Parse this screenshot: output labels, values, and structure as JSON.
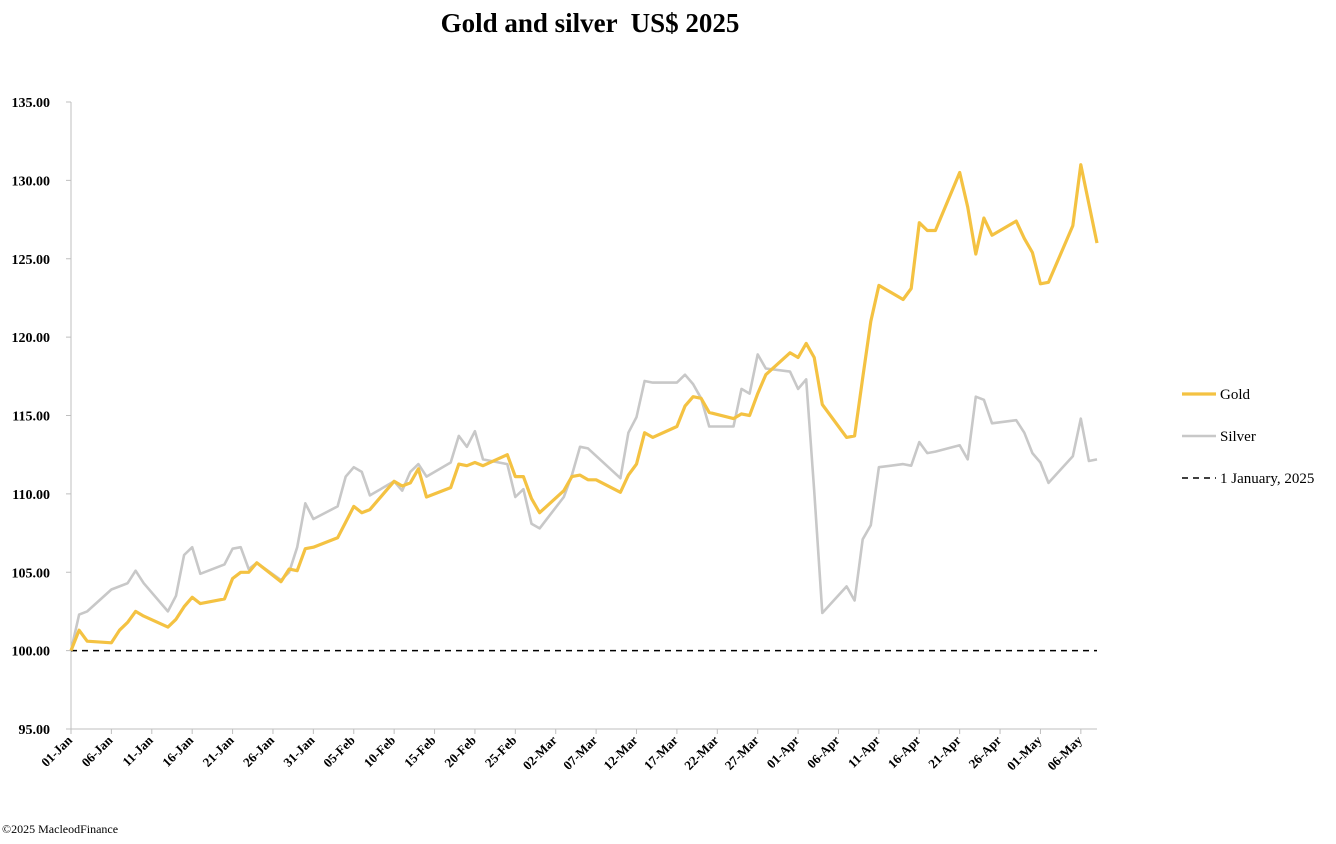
{
  "chart_data": {
    "type": "line",
    "title": "Gold and silver  US$ 2025",
    "xlabel": "",
    "ylabel": "",
    "ylim": [
      95,
      135
    ],
    "yticks": [
      "95.00",
      "100.00",
      "105.00",
      "110.00",
      "115.00",
      "120.00",
      "125.00",
      "130.00",
      "135.00"
    ],
    "xticks": [
      "01-Jan",
      "06-Jan",
      "11-Jan",
      "16-Jan",
      "21-Jan",
      "26-Jan",
      "31-Jan",
      "05-Feb",
      "10-Feb",
      "15-Feb",
      "20-Feb",
      "25-Feb",
      "02-Mar",
      "07-Mar",
      "12-Mar",
      "17-Mar",
      "22-Mar",
      "27-Mar",
      "01-Apr",
      "06-Apr",
      "11-Apr",
      "16-Apr",
      "21-Apr",
      "26-Apr",
      "01-May",
      "06-May"
    ],
    "x_end": "08-May",
    "grid": false,
    "legend_position": "right",
    "series": [
      {
        "name": "Gold",
        "color": "#F4C242",
        "points": [
          [
            "01-Jan",
            100.0
          ],
          [
            "02-Jan",
            101.3
          ],
          [
            "03-Jan",
            100.6
          ],
          [
            "06-Jan",
            100.5
          ],
          [
            "07-Jan",
            101.3
          ],
          [
            "08-Jan",
            101.8
          ],
          [
            "09-Jan",
            102.5
          ],
          [
            "10-Jan",
            102.2
          ],
          [
            "13-Jan",
            101.5
          ],
          [
            "14-Jan",
            102.0
          ],
          [
            "15-Jan",
            102.8
          ],
          [
            "16-Jan",
            103.4
          ],
          [
            "17-Jan",
            103.0
          ],
          [
            "20-Jan",
            103.3
          ],
          [
            "21-Jan",
            104.6
          ],
          [
            "22-Jan",
            105.0
          ],
          [
            "23-Jan",
            105.0
          ],
          [
            "24-Jan",
            105.6
          ],
          [
            "27-Jan",
            104.4
          ],
          [
            "28-Jan",
            105.2
          ],
          [
            "29-Jan",
            105.1
          ],
          [
            "30-Jan",
            106.5
          ],
          [
            "31-Jan",
            106.6
          ],
          [
            "03-Feb",
            107.2
          ],
          [
            "04-Feb",
            108.2
          ],
          [
            "05-Feb",
            109.2
          ],
          [
            "06-Feb",
            108.8
          ],
          [
            "07-Feb",
            109.0
          ],
          [
            "10-Feb",
            110.8
          ],
          [
            "11-Feb",
            110.5
          ],
          [
            "12-Feb",
            110.7
          ],
          [
            "13-Feb",
            111.6
          ],
          [
            "14-Feb",
            109.8
          ],
          [
            "17-Feb",
            110.4
          ],
          [
            "18-Feb",
            111.9
          ],
          [
            "19-Feb",
            111.8
          ],
          [
            "20-Feb",
            112.0
          ],
          [
            "21-Feb",
            111.8
          ],
          [
            "24-Feb",
            112.5
          ],
          [
            "25-Feb",
            111.1
          ],
          [
            "26-Feb",
            111.1
          ],
          [
            "27-Feb",
            109.7
          ],
          [
            "28-Feb",
            108.8
          ],
          [
            "03-Mar",
            110.2
          ],
          [
            "04-Mar",
            111.1
          ],
          [
            "05-Mar",
            111.2
          ],
          [
            "06-Mar",
            110.9
          ],
          [
            "07-Mar",
            110.9
          ],
          [
            "10-Mar",
            110.1
          ],
          [
            "11-Mar",
            111.2
          ],
          [
            "12-Mar",
            111.9
          ],
          [
            "13-Mar",
            113.9
          ],
          [
            "14-Mar",
            113.6
          ],
          [
            "17-Mar",
            114.3
          ],
          [
            "18-Mar",
            115.6
          ],
          [
            "19-Mar",
            116.2
          ],
          [
            "20-Mar",
            116.1
          ],
          [
            "21-Mar",
            115.2
          ],
          [
            "24-Mar",
            114.8
          ],
          [
            "25-Mar",
            115.1
          ],
          [
            "26-Mar",
            115.0
          ],
          [
            "27-Mar",
            116.4
          ],
          [
            "28-Mar",
            117.6
          ],
          [
            "31-Mar",
            119.0
          ],
          [
            "01-Apr",
            118.7
          ],
          [
            "02-Apr",
            119.6
          ],
          [
            "03-Apr",
            118.7
          ],
          [
            "04-Apr",
            115.7
          ],
          [
            "07-Apr",
            113.6
          ],
          [
            "08-Apr",
            113.7
          ],
          [
            "09-Apr",
            117.4
          ],
          [
            "10-Apr",
            121.0
          ],
          [
            "11-Apr",
            123.3
          ],
          [
            "14-Apr",
            122.4
          ],
          [
            "15-Apr",
            123.1
          ],
          [
            "16-Apr",
            127.3
          ],
          [
            "17-Apr",
            126.8
          ],
          [
            "18-Apr",
            126.8
          ],
          [
            "21-Apr",
            130.5
          ],
          [
            "22-Apr",
            128.3
          ],
          [
            "23-Apr",
            125.3
          ],
          [
            "24-Apr",
            127.6
          ],
          [
            "25-Apr",
            126.5
          ],
          [
            "28-Apr",
            127.4
          ],
          [
            "29-Apr",
            126.3
          ],
          [
            "30-Apr",
            125.4
          ],
          [
            "01-May",
            123.4
          ],
          [
            "02-May",
            123.5
          ],
          [
            "05-May",
            127.1
          ],
          [
            "06-May",
            131.0
          ],
          [
            "07-May",
            128.5
          ],
          [
            "08-May",
            126.0
          ]
        ]
      },
      {
        "name": "Silver",
        "color": "#C8C8C8",
        "points": [
          [
            "01-Jan",
            100.0
          ],
          [
            "02-Jan",
            102.3
          ],
          [
            "03-Jan",
            102.5
          ],
          [
            "06-Jan",
            103.9
          ],
          [
            "08-Jan",
            104.3
          ],
          [
            "09-Jan",
            105.1
          ],
          [
            "10-Jan",
            104.3
          ],
          [
            "13-Jan",
            102.5
          ],
          [
            "14-Jan",
            103.5
          ],
          [
            "15-Jan",
            106.1
          ],
          [
            "16-Jan",
            106.6
          ],
          [
            "17-Jan",
            104.9
          ],
          [
            "20-Jan",
            105.5
          ],
          [
            "21-Jan",
            106.5
          ],
          [
            "22-Jan",
            106.6
          ],
          [
            "23-Jan",
            105.2
          ],
          [
            "24-Jan",
            105.6
          ],
          [
            "27-Jan",
            104.5
          ],
          [
            "28-Jan",
            105.0
          ],
          [
            "29-Jan",
            106.6
          ],
          [
            "30-Jan",
            109.4
          ],
          [
            "31-Jan",
            108.4
          ],
          [
            "03-Feb",
            109.2
          ],
          [
            "04-Feb",
            111.1
          ],
          [
            "05-Feb",
            111.7
          ],
          [
            "06-Feb",
            111.4
          ],
          [
            "07-Feb",
            109.9
          ],
          [
            "10-Feb",
            110.8
          ],
          [
            "11-Feb",
            110.2
          ],
          [
            "12-Feb",
            111.4
          ],
          [
            "13-Feb",
            111.9
          ],
          [
            "14-Feb",
            111.1
          ],
          [
            "17-Feb",
            112.0
          ],
          [
            "18-Feb",
            113.7
          ],
          [
            "19-Feb",
            113.0
          ],
          [
            "20-Feb",
            114.0
          ],
          [
            "21-Feb",
            112.2
          ],
          [
            "24-Feb",
            111.9
          ],
          [
            "25-Feb",
            109.8
          ],
          [
            "26-Feb",
            110.3
          ],
          [
            "27-Feb",
            108.1
          ],
          [
            "28-Feb",
            107.8
          ],
          [
            "03-Mar",
            109.8
          ],
          [
            "04-Mar",
            111.2
          ],
          [
            "05-Mar",
            113.0
          ],
          [
            "06-Mar",
            112.9
          ],
          [
            "10-Mar",
            111.0
          ],
          [
            "11-Mar",
            113.9
          ],
          [
            "12-Mar",
            114.9
          ],
          [
            "13-Mar",
            117.2
          ],
          [
            "14-Mar",
            117.1
          ],
          [
            "17-Mar",
            117.1
          ],
          [
            "18-Mar",
            117.6
          ],
          [
            "19-Mar",
            117.0
          ],
          [
            "20-Mar",
            116.1
          ],
          [
            "21-Mar",
            114.3
          ],
          [
            "24-Mar",
            114.3
          ],
          [
            "25-Mar",
            116.7
          ],
          [
            "26-Mar",
            116.4
          ],
          [
            "27-Mar",
            118.9
          ],
          [
            "28-Mar",
            118.0
          ],
          [
            "31-Mar",
            117.8
          ],
          [
            "01-Apr",
            116.7
          ],
          [
            "02-Apr",
            117.3
          ],
          [
            "03-Apr",
            110.2
          ],
          [
            "04-Apr",
            102.4
          ],
          [
            "07-Apr",
            104.1
          ],
          [
            "08-Apr",
            103.2
          ],
          [
            "09-Apr",
            107.1
          ],
          [
            "10-Apr",
            108.0
          ],
          [
            "11-Apr",
            111.7
          ],
          [
            "14-Apr",
            111.9
          ],
          [
            "15-Apr",
            111.8
          ],
          [
            "16-Apr",
            113.3
          ],
          [
            "17-Apr",
            112.6
          ],
          [
            "18-Apr",
            112.7
          ],
          [
            "21-Apr",
            113.1
          ],
          [
            "22-Apr",
            112.2
          ],
          [
            "23-Apr",
            116.2
          ],
          [
            "24-Apr",
            116.0
          ],
          [
            "25-Apr",
            114.5
          ],
          [
            "28-Apr",
            114.7
          ],
          [
            "29-Apr",
            113.9
          ],
          [
            "30-Apr",
            112.6
          ],
          [
            "01-May",
            112.0
          ],
          [
            "02-May",
            110.7
          ],
          [
            "05-May",
            112.4
          ],
          [
            "06-May",
            114.8
          ],
          [
            "07-May",
            112.1
          ],
          [
            "08-May",
            112.2
          ]
        ]
      }
    ],
    "baseline": {
      "name": "1 January, 2025",
      "value": 100,
      "color": "#000000",
      "style": "dashed"
    }
  },
  "footer": {
    "copyright": "©2025 MacleodFinance"
  }
}
